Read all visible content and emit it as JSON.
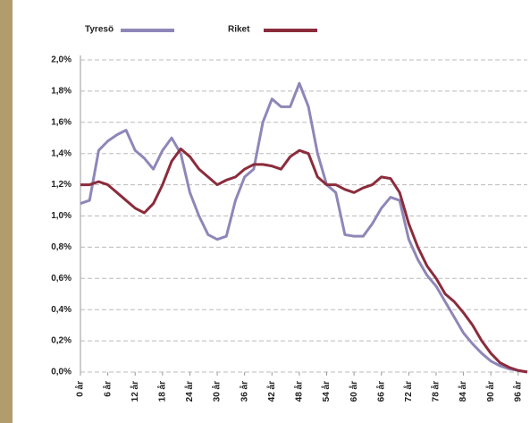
{
  "chart_data": {
    "type": "line",
    "x": [
      0,
      2,
      4,
      6,
      8,
      10,
      12,
      14,
      16,
      18,
      20,
      22,
      24,
      26,
      28,
      30,
      32,
      34,
      36,
      38,
      40,
      42,
      44,
      46,
      48,
      50,
      52,
      54,
      56,
      58,
      60,
      62,
      64,
      66,
      68,
      70,
      72,
      74,
      76,
      78,
      80,
      82,
      84,
      86,
      88,
      90,
      92,
      94,
      96,
      98
    ],
    "series": [
      {
        "name": "Tyresö",
        "color": "#8f86b8",
        "values": [
          1.08,
          1.1,
          1.42,
          1.48,
          1.52,
          1.55,
          1.42,
          1.37,
          1.3,
          1.42,
          1.5,
          1.4,
          1.15,
          1.0,
          0.88,
          0.85,
          0.87,
          1.1,
          1.25,
          1.3,
          1.6,
          1.75,
          1.7,
          1.7,
          1.85,
          1.7,
          1.4,
          1.2,
          1.15,
          0.88,
          0.87,
          0.87,
          0.95,
          1.05,
          1.12,
          1.1,
          0.85,
          0.72,
          0.62,
          0.55,
          0.45,
          0.35,
          0.25,
          0.18,
          0.12,
          0.07,
          0.04,
          0.02,
          0.01,
          0
        ]
      },
      {
        "name": "Riket",
        "color": "#8b2c3c",
        "values": [
          1.2,
          1.2,
          1.22,
          1.2,
          1.15,
          1.1,
          1.05,
          1.02,
          1.08,
          1.2,
          1.35,
          1.43,
          1.38,
          1.3,
          1.25,
          1.2,
          1.23,
          1.25,
          1.3,
          1.33,
          1.33,
          1.32,
          1.3,
          1.38,
          1.42,
          1.4,
          1.25,
          1.2,
          1.2,
          1.17,
          1.15,
          1.18,
          1.2,
          1.25,
          1.24,
          1.15,
          0.95,
          0.8,
          0.68,
          0.6,
          0.5,
          0.45,
          0.38,
          0.3,
          0.2,
          0.12,
          0.06,
          0.03,
          0.01,
          0
        ]
      }
    ],
    "xlim": [
      0,
      98
    ],
    "xticks": [
      {
        "value": 0,
        "label": "0 år"
      },
      {
        "value": 6,
        "label": "6 år"
      },
      {
        "value": 12,
        "label": "12 år"
      },
      {
        "value": 18,
        "label": "18 år"
      },
      {
        "value": 24,
        "label": "24 år"
      },
      {
        "value": 30,
        "label": "30 år"
      },
      {
        "value": 36,
        "label": "36 år"
      },
      {
        "value": 42,
        "label": "42 år"
      },
      {
        "value": 48,
        "label": "48 år"
      },
      {
        "value": 54,
        "label": "54 år"
      },
      {
        "value": 60,
        "label": "60 år"
      },
      {
        "value": 66,
        "label": "66 år"
      },
      {
        "value": 72,
        "label": "72 år"
      },
      {
        "value": 78,
        "label": "78 år"
      },
      {
        "value": 84,
        "label": "84 år"
      },
      {
        "value": 90,
        "label": "90 år"
      },
      {
        "value": 96,
        "label": "96 år"
      }
    ],
    "ylim": [
      0,
      2
    ],
    "yticks": [
      {
        "value": 0,
        "label": "0,0%"
      },
      {
        "value": 0.2,
        "label": "0,2%"
      },
      {
        "value": 0.4,
        "label": "0,4%"
      },
      {
        "value": 0.6,
        "label": "0,6%"
      },
      {
        "value": 0.8,
        "label": "0,8%"
      },
      {
        "value": 1.0,
        "label": "1,0%"
      },
      {
        "value": 1.2,
        "label": "1,2%"
      },
      {
        "value": 1.4,
        "label": "1,4%"
      },
      {
        "value": 1.6,
        "label": "1,6%"
      },
      {
        "value": 1.8,
        "label": "1,8%"
      },
      {
        "value": 2.0,
        "label": "2,0%"
      }
    ],
    "grid": true,
    "legend": "top"
  }
}
